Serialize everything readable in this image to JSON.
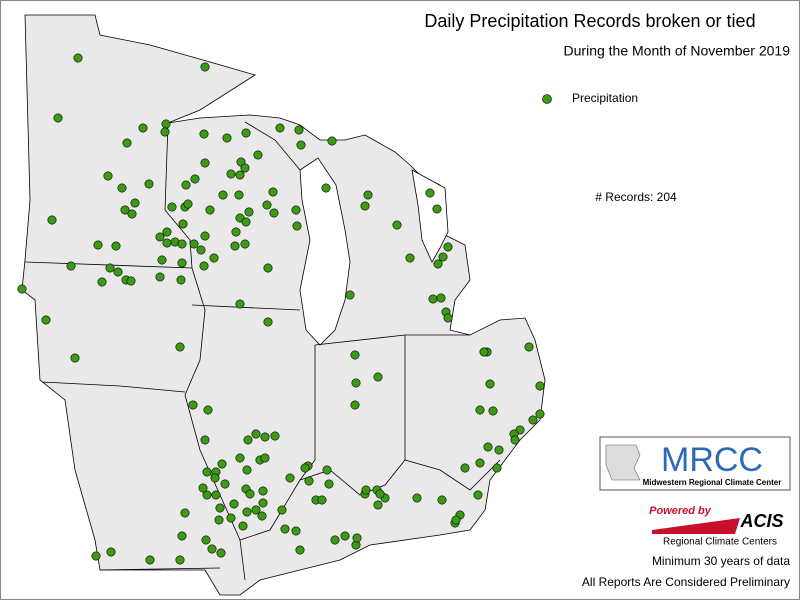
{
  "header": {
    "title": "Daily Precipitation Records broken or tied",
    "subtitle": "During the Month of November 2019"
  },
  "legend": {
    "label": "Precipitation"
  },
  "records_note": "# Records: 204",
  "logo": {
    "name": "MRCC",
    "full_name": "Midwestern Regional Climate Center"
  },
  "acis": {
    "powered": "Powered by",
    "name": "ACIS",
    "caption": "Regional Climate Centers"
  },
  "footer": {
    "line1": "Minimum 30 years of data",
    "line2": "All Reports Are Considered Preliminary"
  }
}
